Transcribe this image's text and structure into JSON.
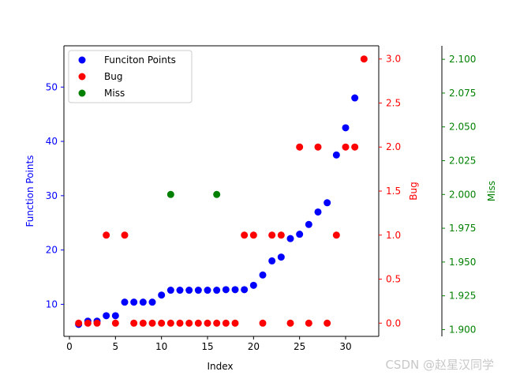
{
  "chart_data": {
    "type": "scatter",
    "xlabel": "Index",
    "xlim": [
      -0.6,
      33.6
    ],
    "xticks": [
      0,
      5,
      10,
      15,
      20,
      25,
      30
    ],
    "axes": [
      {
        "id": "function_points",
        "label": "Function Points",
        "color": "#0000ff",
        "side": "left",
        "ylim": [
          4.1,
          57.6
        ],
        "ticks": [
          10,
          20,
          30,
          40,
          50
        ],
        "tick_format": "int"
      },
      {
        "id": "bug",
        "label": "Bug",
        "color": "#ff0000",
        "side": "right",
        "ylim": [
          -0.15,
          3.15
        ],
        "ticks": [
          0.0,
          0.5,
          1.0,
          1.5,
          2.0,
          2.5,
          3.0
        ],
        "tick_format": "1"
      },
      {
        "id": "miss",
        "label": "Miss",
        "color": "#008000",
        "side": "right-offset",
        "ylim": [
          1.895,
          2.11
        ],
        "ticks": [
          1.9,
          1.925,
          1.95,
          1.975,
          2.0,
          2.025,
          2.05,
          2.075,
          2.1
        ],
        "tick_format": "3"
      }
    ],
    "series": [
      {
        "name": "Funciton Points",
        "axis": "function_points",
        "color": "#0000ff",
        "x": [
          1,
          2,
          3,
          4,
          5,
          6,
          7,
          8,
          9,
          10,
          11,
          12,
          13,
          14,
          15,
          16,
          17,
          18,
          19,
          20,
          21,
          22,
          23,
          24,
          25,
          26,
          27,
          28,
          29,
          30,
          31
        ],
        "y": [
          6.3,
          6.9,
          6.9,
          7.9,
          7.9,
          10.4,
          10.4,
          10.4,
          10.4,
          11.7,
          12.6,
          12.6,
          12.6,
          12.6,
          12.6,
          12.6,
          12.7,
          12.7,
          12.7,
          13.5,
          15.4,
          18.0,
          18.7,
          22.1,
          22.9,
          24.7,
          27.0,
          28.7,
          37.5,
          42.5,
          48.0
        ]
      },
      {
        "name": "Bug",
        "axis": "bug",
        "color": "#ff0000",
        "x": [
          1,
          2,
          3,
          4,
          5,
          6,
          7,
          8,
          9,
          10,
          11,
          12,
          13,
          14,
          15,
          16,
          17,
          18,
          19,
          20,
          21,
          22,
          23,
          24,
          25,
          26,
          27,
          28,
          29,
          30,
          31,
          32
        ],
        "y": [
          0,
          0,
          0,
          1,
          0,
          1,
          0,
          0,
          0,
          0,
          0,
          0,
          0,
          0,
          0,
          0,
          0,
          0,
          1,
          1,
          0,
          1,
          1,
          0,
          2,
          0,
          2,
          0,
          1,
          2,
          2,
          3
        ]
      },
      {
        "name": "Miss",
        "axis": "miss",
        "color": "#008000",
        "x": [
          11,
          16
        ],
        "y": [
          2.0,
          2.0
        ]
      }
    ],
    "legend": {
      "placement": "upper-left",
      "entries": [
        "Funciton Points",
        "Bug",
        "Miss"
      ]
    },
    "grid": false
  },
  "watermark": "CSDN @赵星汉同学"
}
